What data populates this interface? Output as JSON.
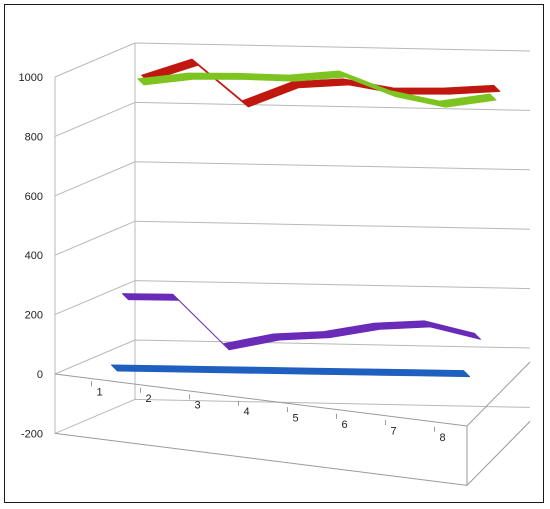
{
  "chart_data": {
    "type": "line",
    "style": "3d-line",
    "title": "",
    "xlabel": "",
    "ylabel": "",
    "ylim": [
      -200,
      1000
    ],
    "yticks": [
      -200,
      0,
      200,
      400,
      600,
      800,
      1000
    ],
    "categories": [
      "1",
      "2",
      "3",
      "4",
      "5",
      "6",
      "7",
      "8"
    ],
    "grid": true,
    "legend": "none",
    "series": [
      {
        "color": "#1f5fbf",
        "values": [
          0,
          0,
          0,
          0,
          0,
          0,
          0,
          0
        ]
      },
      {
        "color": "#6a2bb8",
        "values": [
          220,
          220,
          55,
          90,
          100,
          130,
          140,
          100
        ]
      },
      {
        "color": "#7dc421",
        "values": [
          915,
          935,
          935,
          930,
          945,
          880,
          845,
          870
        ]
      },
      {
        "color": "#c0170f",
        "values": [
          920,
          975,
          835,
          900,
          910,
          880,
          880,
          890
        ]
      }
    ]
  }
}
